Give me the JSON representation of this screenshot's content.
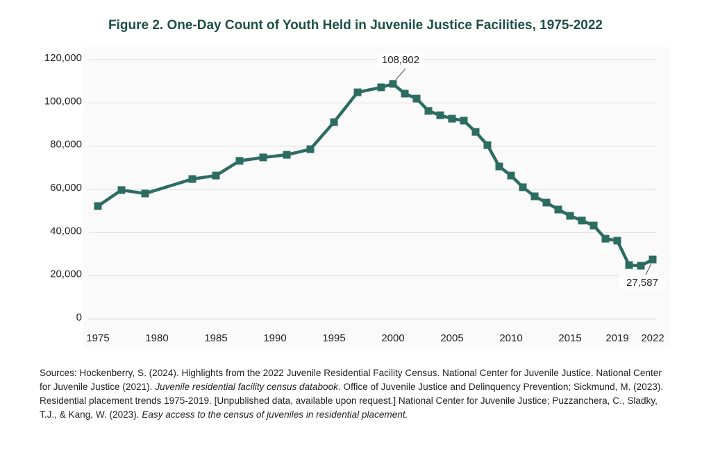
{
  "chart_data": {
    "type": "line",
    "title": "Figure 2. One-Day Count of Youth Held in Juvenile Justice Facilities, 1975-2022",
    "x": [
      1975,
      1977,
      1979,
      1983,
      1985,
      1987,
      1989,
      1991,
      1993,
      1995,
      1997,
      1999,
      2000,
      2001,
      2002,
      2003,
      2004,
      2005,
      2006,
      2007,
      2008,
      2009,
      2010,
      2011,
      2012,
      2013,
      2014,
      2015,
      2016,
      2017,
      2018,
      2019,
      2020,
      2021,
      2022
    ],
    "series": [
      {
        "name": "Youth held",
        "color": "#2c6c61",
        "values": [
          52300,
          59700,
          58100,
          64800,
          66400,
          73200,
          74800,
          76000,
          78600,
          91100,
          104900,
          107200,
          108802,
          104300,
          102000,
          96300,
          94300,
          92700,
          91800,
          86600,
          80500,
          70600,
          66400,
          61000,
          56800,
          53900,
          50700,
          47800,
          45600,
          43300,
          37200,
          36300,
          25000,
          24700,
          27587
        ],
        "value_labels": [
          null,
          null,
          null,
          null,
          null,
          null,
          null,
          null,
          null,
          null,
          null,
          null,
          "108,802",
          null,
          null,
          null,
          null,
          null,
          null,
          null,
          null,
          null,
          null,
          null,
          null,
          null,
          null,
          null,
          null,
          null,
          null,
          null,
          null,
          null,
          "27,587"
        ]
      }
    ],
    "xlim": [
      1975,
      2022
    ],
    "xticks": [
      1975,
      1980,
      1985,
      1990,
      1995,
      2000,
      2005,
      2010,
      2015,
      2019,
      2022
    ],
    "ylim": [
      0,
      120000
    ],
    "yticks": [
      0,
      {
        "value": 20000,
        "label": "20,000"
      },
      {
        "value": 40000,
        "label": "40,000"
      },
      {
        "value": 60000,
        "label": "60,000"
      },
      {
        "value": 80000,
        "label": "80,000"
      },
      {
        "value": 100000,
        "label": "100,000"
      },
      {
        "value": 120000,
        "label": "120,000"
      }
    ],
    "grid": true
  },
  "sources": [
    {
      "text": "Sources:  Hockenberry, S. (2024). Highlights from the 2022 Juvenile Residential Facility Census. National Center for Juvenile Justice. National Center for Juvenile Justice (2021). ",
      "style": "normal"
    },
    {
      "text": "Juvenile residential facility census databook",
      "style": "italic"
    },
    {
      "text": ". Office of Juvenile Justice and Delinquency Prevention; Sickmund, M. (2023). Residential placement trends 1975-2019. [Unpublished data, available upon request.] National Center for Juvenile Justice; Puzzanchera, C., Sladky, T.J., & Kang, W. (2023). ",
      "style": "normal"
    },
    {
      "text": "Easy access to the census of juveniles in residential placement.",
      "style": "italic"
    }
  ]
}
